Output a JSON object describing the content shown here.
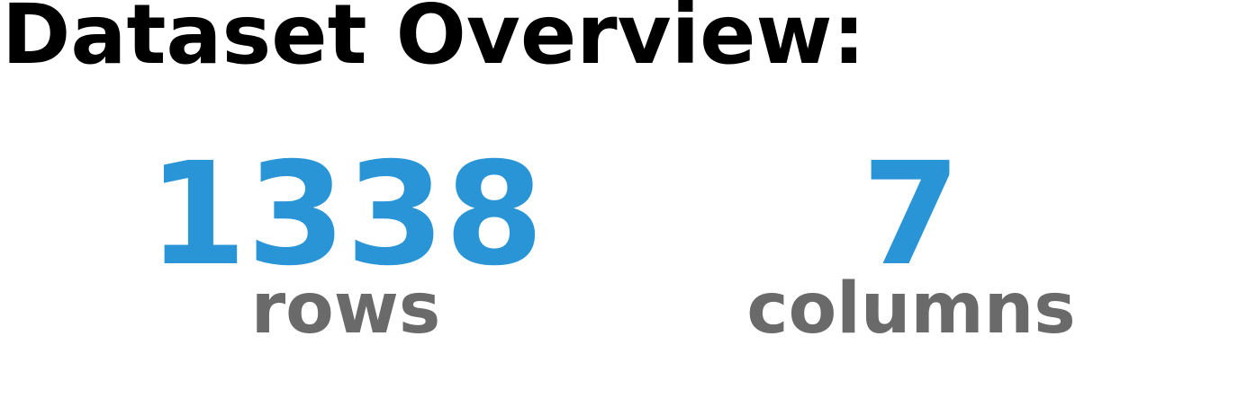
{
  "title": "Dataset Overview:",
  "stats": {
    "rows": {
      "value": "1338",
      "label": "rows"
    },
    "columns": {
      "value": "7",
      "label": "columns"
    }
  },
  "colors": {
    "value": "#2994d6",
    "label": "#6a6a6a",
    "title": "#000000"
  }
}
